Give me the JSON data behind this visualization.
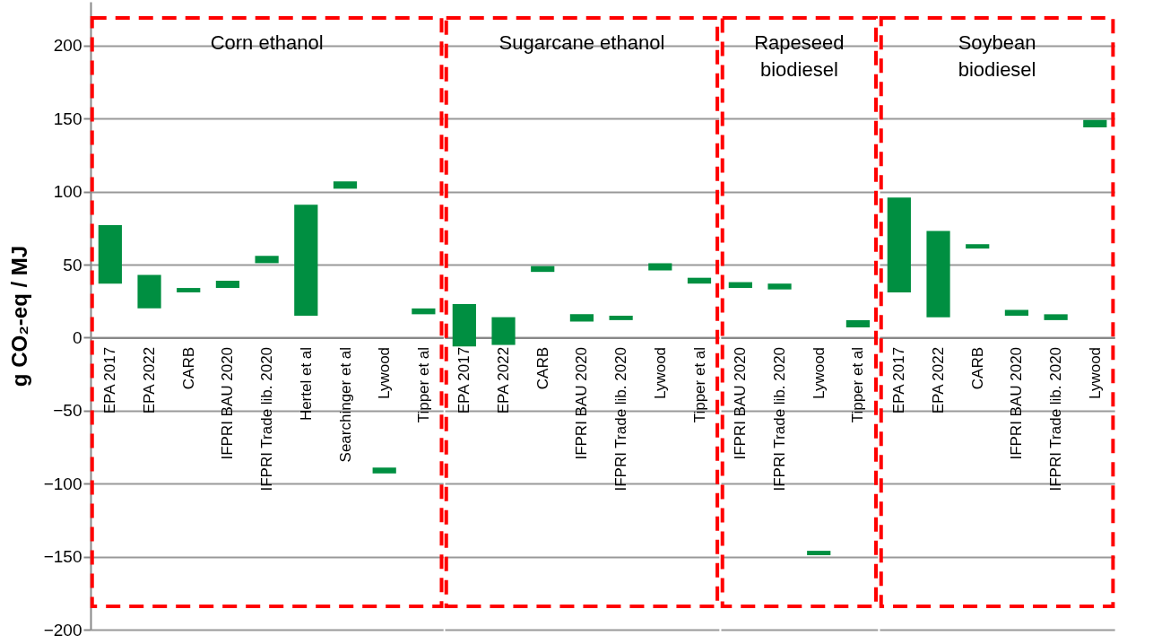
{
  "chart_data": [
    {
      "type": "bar",
      "title": "Corn ethanol",
      "ylabel": "g CO₂-eq / MJ",
      "color": "#008f41",
      "categories": [
        "EPA 2017",
        "EPA 2022",
        "CARB",
        "IFPRI BAU 2020",
        "IFPRI Trade lib. 2020",
        "Hertel et al",
        "Searchinger et al",
        "Lywood",
        "Tipper et al"
      ],
      "base": [
        37,
        20,
        31,
        34,
        51,
        15,
        102,
        -93,
        16
      ],
      "values": [
        40,
        23,
        3,
        5,
        5,
        76,
        5,
        4,
        4
      ],
      "ylim": [
        -200,
        230
      ],
      "yticks": [
        -200,
        -150,
        -100,
        -50,
        0,
        50,
        100,
        150,
        200
      ],
      "grid": "y"
    },
    {
      "type": "bar",
      "title": "Sugarcane ethanol",
      "color": "#008f41",
      "categories": [
        "EPA 2017",
        "EPA 2022",
        "CARB",
        "IFPRI BAU 2020",
        "IFPRI Trade lib. 2020",
        "Lywood",
        "Tipper et al"
      ],
      "base": [
        -6,
        -5,
        45,
        11,
        12,
        46,
        37
      ],
      "values": [
        29,
        19,
        4,
        5,
        3,
        5,
        4
      ],
      "ylim": [
        -200,
        230
      ],
      "yticks": [
        -200,
        -150,
        -100,
        -50,
        0,
        50,
        100,
        150,
        200
      ],
      "grid": "y",
      "tick_labels": "x"
    },
    {
      "type": "bar",
      "title": "Rapeseed biodiesel",
      "color": "#008f41",
      "categories": [
        "IFPRI BAU 2020",
        "IFPRI Trade lib. 2020",
        "Lywood",
        "Tipper et al"
      ],
      "base": [
        34,
        33,
        -149,
        7
      ],
      "values": [
        4,
        4,
        3,
        5
      ],
      "ylim": [
        -200,
        230
      ],
      "yticks": [
        -200,
        -150,
        -100,
        -50,
        0,
        50,
        100,
        150,
        200
      ],
      "grid": "y",
      "tick_labels": "x"
    },
    {
      "type": "bar",
      "title": "Soybean biodiesel",
      "color": "#008f41",
      "categories": [
        "EPA 2017",
        "EPA 2022",
        "CARB",
        "IFPRI BAU 2020",
        "IFPRI Trade lib. 2020",
        "Lywood"
      ],
      "base": [
        31,
        14,
        61,
        15,
        12,
        144
      ],
      "values": [
        65,
        59,
        3,
        4,
        4,
        5
      ],
      "ylim": [
        -200,
        230
      ],
      "yticks": [
        -200,
        -150,
        -100,
        -50,
        0,
        50,
        100,
        150,
        200
      ],
      "grid": "y",
      "tick_labels": "x"
    }
  ]
}
